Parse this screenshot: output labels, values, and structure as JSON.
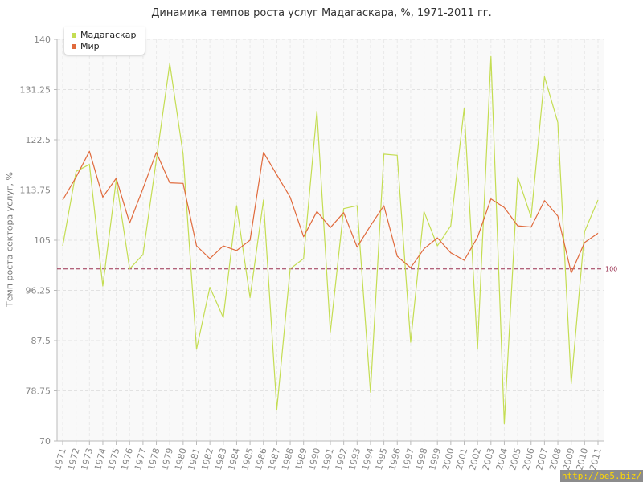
{
  "chart_data": {
    "type": "line",
    "title": "Динамика темпов роста услуг Мадагаскара, %, 1971-2011 гг.",
    "ylabel": "Темп роста сектора услуг, %",
    "xlabel": "",
    "ylim": [
      70,
      140
    ],
    "yticks": [
      "70",
      "78.75",
      "87.5",
      "96.25",
      "105",
      "113.75",
      "122.5",
      "131.25",
      "140"
    ],
    "categories": [
      "1971",
      "1972",
      "1973",
      "1974",
      "1975",
      "1976",
      "1977",
      "1978",
      "1979",
      "1980",
      "1981",
      "1982",
      "1983",
      "1984",
      "1985",
      "1986",
      "1987",
      "1988",
      "1989",
      "1990",
      "1991",
      "1992",
      "1993",
      "1994",
      "1995",
      "1996",
      "1997",
      "1998",
      "1999",
      "2000",
      "2001",
      "2002",
      "2003",
      "2004",
      "2005",
      "2006",
      "2007",
      "2008",
      "2009",
      "2010",
      "2011"
    ],
    "series": [
      {
        "name": "Мадагаскар",
        "color": "#c4dd52",
        "values": [
          104.0,
          117.0,
          118.2,
          97.0,
          115.5,
          100.0,
          102.5,
          119.0,
          135.8,
          120.0,
          86.0,
          96.8,
          91.5,
          111.0,
          95.0,
          112.0,
          75.5,
          100.0,
          101.8,
          127.5,
          89.0,
          110.5,
          111.0,
          78.5,
          120.0,
          119.8,
          87.2,
          110.0,
          104.0,
          107.5,
          128.0,
          86.0,
          137.0,
          73.0,
          116.0,
          109.0,
          133.5,
          125.5,
          80.0,
          106.5,
          112.0
        ]
      },
      {
        "name": "Мир",
        "color": "#e06a3c",
        "values": [
          112.0,
          116.0,
          120.5,
          112.5,
          115.8,
          108.0,
          114.0,
          120.3,
          115.0,
          114.9,
          104.0,
          101.8,
          104.0,
          103.2,
          105.0,
          120.3,
          116.4,
          112.5,
          105.6,
          110.0,
          107.2,
          109.8,
          103.8,
          107.5,
          111.0,
          102.2,
          100.2,
          103.5,
          105.4,
          102.8,
          101.5,
          105.5,
          112.2,
          110.7,
          107.5,
          107.3,
          111.9,
          109.2,
          99.3,
          104.6,
          106.2
        ]
      }
    ],
    "reference_line": {
      "value": 100,
      "label": "100",
      "color": "#9a3050"
    },
    "legend_position": "top-left",
    "grid": true
  },
  "legend": {
    "items": [
      {
        "label": "Мадагаскар",
        "color": "#c4dd52"
      },
      {
        "label": "Мир",
        "color": "#e06a3c"
      }
    ]
  },
  "watermark": "http://be5.biz/"
}
